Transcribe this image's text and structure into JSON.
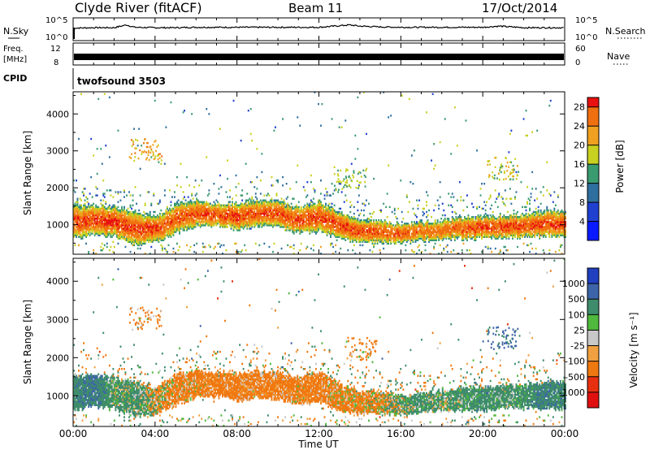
{
  "header": {
    "station": "Clyde River (fitACF)",
    "beam": "Beam 11",
    "date": "17/Oct/2014"
  },
  "time_axis": {
    "label": "Time UT",
    "ticks": [
      "00:00",
      "04:00",
      "08:00",
      "12:00",
      "16:00",
      "20:00",
      "00:00"
    ],
    "tick_hours": [
      0,
      4,
      8,
      12,
      16,
      20,
      24
    ]
  },
  "panels": {
    "noise": {
      "left_label": "N.Sky",
      "right_label": "N.Search",
      "left_ticks": [
        "10^5",
        "10^0"
      ],
      "right_ticks": [
        "10^5",
        "10^0"
      ]
    },
    "freq": {
      "left_label_top": "Freq.",
      "left_label_bottom": "[MHz]",
      "right_label": "Nave",
      "left_ticks": [
        "12",
        "8"
      ],
      "right_ticks": [
        "60",
        "0"
      ]
    },
    "cpid": {
      "left_label": "CPID",
      "value_text": "twofsound 3503"
    }
  },
  "power_panel": {
    "ylabel": "Slant Range [km]",
    "yticks": [
      "4000",
      "3000",
      "2000",
      "1000"
    ],
    "colorbar_label": "Power [dB]",
    "colorbar_ticks": [
      "28",
      "24",
      "20",
      "16",
      "12",
      "8",
      "4"
    ]
  },
  "velocity_panel": {
    "ylabel": "Slant Range [km]",
    "yticks": [
      "4000",
      "3000",
      "2000",
      "1000"
    ],
    "colorbar_label": "Velocity  [m s⁻¹]",
    "colorbar_ticks": [
      "1000",
      "500",
      "100",
      "25",
      "-25",
      "-100",
      "-500",
      "-1000"
    ]
  },
  "chart_data": [
    {
      "type": "line",
      "title": "Clyde River (fitACF)",
      "xlabel": "Time UT",
      "ylabel": "N.Sky",
      "x_unit": "hours UT",
      "xlim": [
        0,
        24
      ],
      "ylim": [
        0,
        5
      ],
      "yscale": "log10",
      "series": [
        {
          "name": "N.Sky",
          "x": [
            0,
            1,
            2,
            2.6,
            3,
            4,
            5,
            6,
            8,
            10,
            12,
            13,
            13.5,
            14,
            15,
            16,
            18,
            20,
            20.8,
            22,
            24
          ],
          "values": [
            2.8,
            2.9,
            2.9,
            3.6,
            3.0,
            2.9,
            2.9,
            3.0,
            3.0,
            3.0,
            3.0,
            3.4,
            3.6,
            3.3,
            3.1,
            3.0,
            3.0,
            3.0,
            3.3,
            2.9,
            2.9
          ]
        }
      ]
    },
    {
      "type": "line",
      "xlabel": "Time UT",
      "ylabel": "Freq. [MHz]",
      "x_unit": "hours UT",
      "xlim": [
        0,
        24
      ],
      "ylim": [
        8,
        12
      ],
      "series": [
        {
          "x": [
            0,
            24
          ],
          "values": [
            10.4,
            10.4
          ]
        }
      ]
    },
    {
      "type": "heatmap",
      "xlabel": "Time UT",
      "ylabel": "Slant Range [km]",
      "x_unit": "hours UT",
      "xlim": [
        0,
        24
      ],
      "ylim": [
        200,
        4600
      ],
      "colorbar": {
        "label": "Power [dB]",
        "range": [
          0,
          30
        ],
        "ticks": [
          4,
          8,
          12,
          16,
          20,
          24,
          28
        ]
      },
      "x_breakpoints": [
        0,
        1,
        2,
        3,
        4,
        5,
        6,
        7,
        8,
        9,
        10,
        11,
        12,
        13,
        14,
        15,
        16,
        17,
        18,
        19,
        20,
        21,
        22,
        23,
        24
      ],
      "band_center_km": [
        1050,
        1100,
        1050,
        900,
        850,
        1150,
        1300,
        1250,
        1200,
        1300,
        1250,
        1100,
        1200,
        950,
        800,
        800,
        750,
        800,
        850,
        900,
        900,
        950,
        950,
        1000,
        1000
      ],
      "band_halfwidth_km": [
        450,
        400,
        400,
        450,
        350,
        400,
        350,
        300,
        350,
        350,
        350,
        350,
        400,
        350,
        300,
        300,
        250,
        250,
        250,
        300,
        300,
        300,
        300,
        350,
        350
      ],
      "band_peak_power_db": [
        28,
        28,
        29,
        28,
        28,
        27,
        28,
        28,
        28,
        27,
        28,
        28,
        28,
        28,
        28,
        27,
        28,
        26,
        26,
        27,
        28,
        28,
        28,
        28,
        28
      ],
      "notable_features": [
        {
          "x": 3.5,
          "range_km": 3000,
          "power_db": 22
        },
        {
          "x": 21.0,
          "range_km": 2500,
          "power_db": 18
        },
        {
          "x": 13.5,
          "range_km": 2200,
          "power_db": 16
        }
      ]
    },
    {
      "type": "heatmap",
      "xlabel": "Time UT",
      "ylabel": "Slant Range [km]",
      "x_unit": "hours UT",
      "xlim": [
        0,
        24
      ],
      "ylim": [
        200,
        4600
      ],
      "colorbar": {
        "label": "Velocity  [m s⁻¹]",
        "ticks": [
          1000,
          500,
          100,
          25,
          -25,
          -100,
          -500,
          -1000
        ]
      },
      "x_breakpoints": [
        0,
        1,
        2,
        3,
        4,
        5,
        6,
        7,
        8,
        9,
        10,
        11,
        12,
        13,
        14,
        15,
        16,
        17,
        18,
        19,
        20,
        21,
        22,
        23,
        24
      ],
      "band_center_km": [
        1050,
        1100,
        1050,
        900,
        850,
        1150,
        1300,
        1250,
        1200,
        1300,
        1250,
        1100,
        1200,
        950,
        800,
        800,
        750,
        800,
        850,
        900,
        900,
        950,
        950,
        1000,
        1000
      ],
      "band_halfwidth_km": [
        450,
        400,
        400,
        450,
        350,
        400,
        350,
        300,
        350,
        350,
        350,
        350,
        400,
        350,
        300,
        300,
        250,
        250,
        250,
        300,
        300,
        300,
        300,
        350,
        350
      ],
      "band_velocity_ms": [
        300,
        500,
        150,
        200,
        0,
        -200,
        -200,
        -250,
        -250,
        -200,
        -250,
        -200,
        -250,
        -150,
        -150,
        -100,
        100,
        200,
        150,
        200,
        300,
        200,
        250,
        400,
        300
      ],
      "notable_features": [
        {
          "x": 3.5,
          "range_km": 3000,
          "velocity_ms": -150
        },
        {
          "x": 21.0,
          "range_km": 2500,
          "velocity_ms": 600
        },
        {
          "x": 14.0,
          "range_km": 2200,
          "velocity_ms": -150
        }
      ]
    }
  ]
}
